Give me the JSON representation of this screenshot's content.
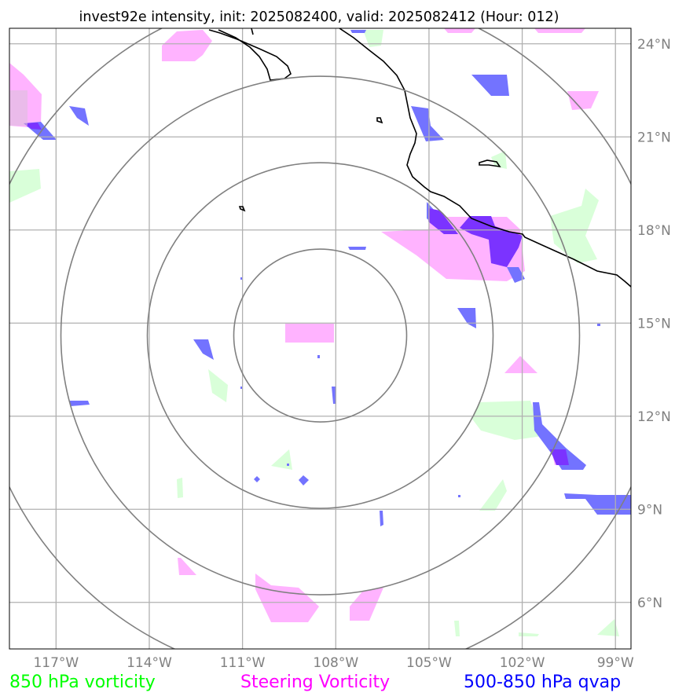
{
  "title": "invest92e intensity, init: 2025082400, valid: 2025082412 (Hour: 012)",
  "map": {
    "lon_range": [
      -118.5,
      -98.5
    ],
    "lat_range": [
      4.5,
      24.5
    ],
    "lon_ticks": [
      -117,
      -114,
      -111,
      -108,
      -105,
      -102,
      -99
    ],
    "lat_ticks": [
      6,
      9,
      12,
      15,
      18,
      21,
      24
    ],
    "lon_tick_labels": [
      "117°W",
      "114°W",
      "111°W",
      "108°W",
      "105°W",
      "102°W",
      "99°W"
    ],
    "lat_tick_labels": [
      "6°N",
      "9°N",
      "12°N",
      "15°N",
      "18°N",
      "21°N",
      "24°N"
    ],
    "storm_center": {
      "lon": -108.5,
      "lat": 14.6
    },
    "grid": true
  },
  "legend": [
    {
      "label": "850 hPa vorticity",
      "color": "#00ff00"
    },
    {
      "label": "Steering Vorticity",
      "color": "#ff00ff"
    },
    {
      "label": "500-850 hPa qvap",
      "color": "#0000ff"
    }
  ],
  "colors": {
    "vort850": "#d9ffd9",
    "steering": "#ffb3ff",
    "qvap": "#7373ff",
    "overlap": "#7b33ff",
    "rings": "#808080",
    "coast": "#000000"
  }
}
